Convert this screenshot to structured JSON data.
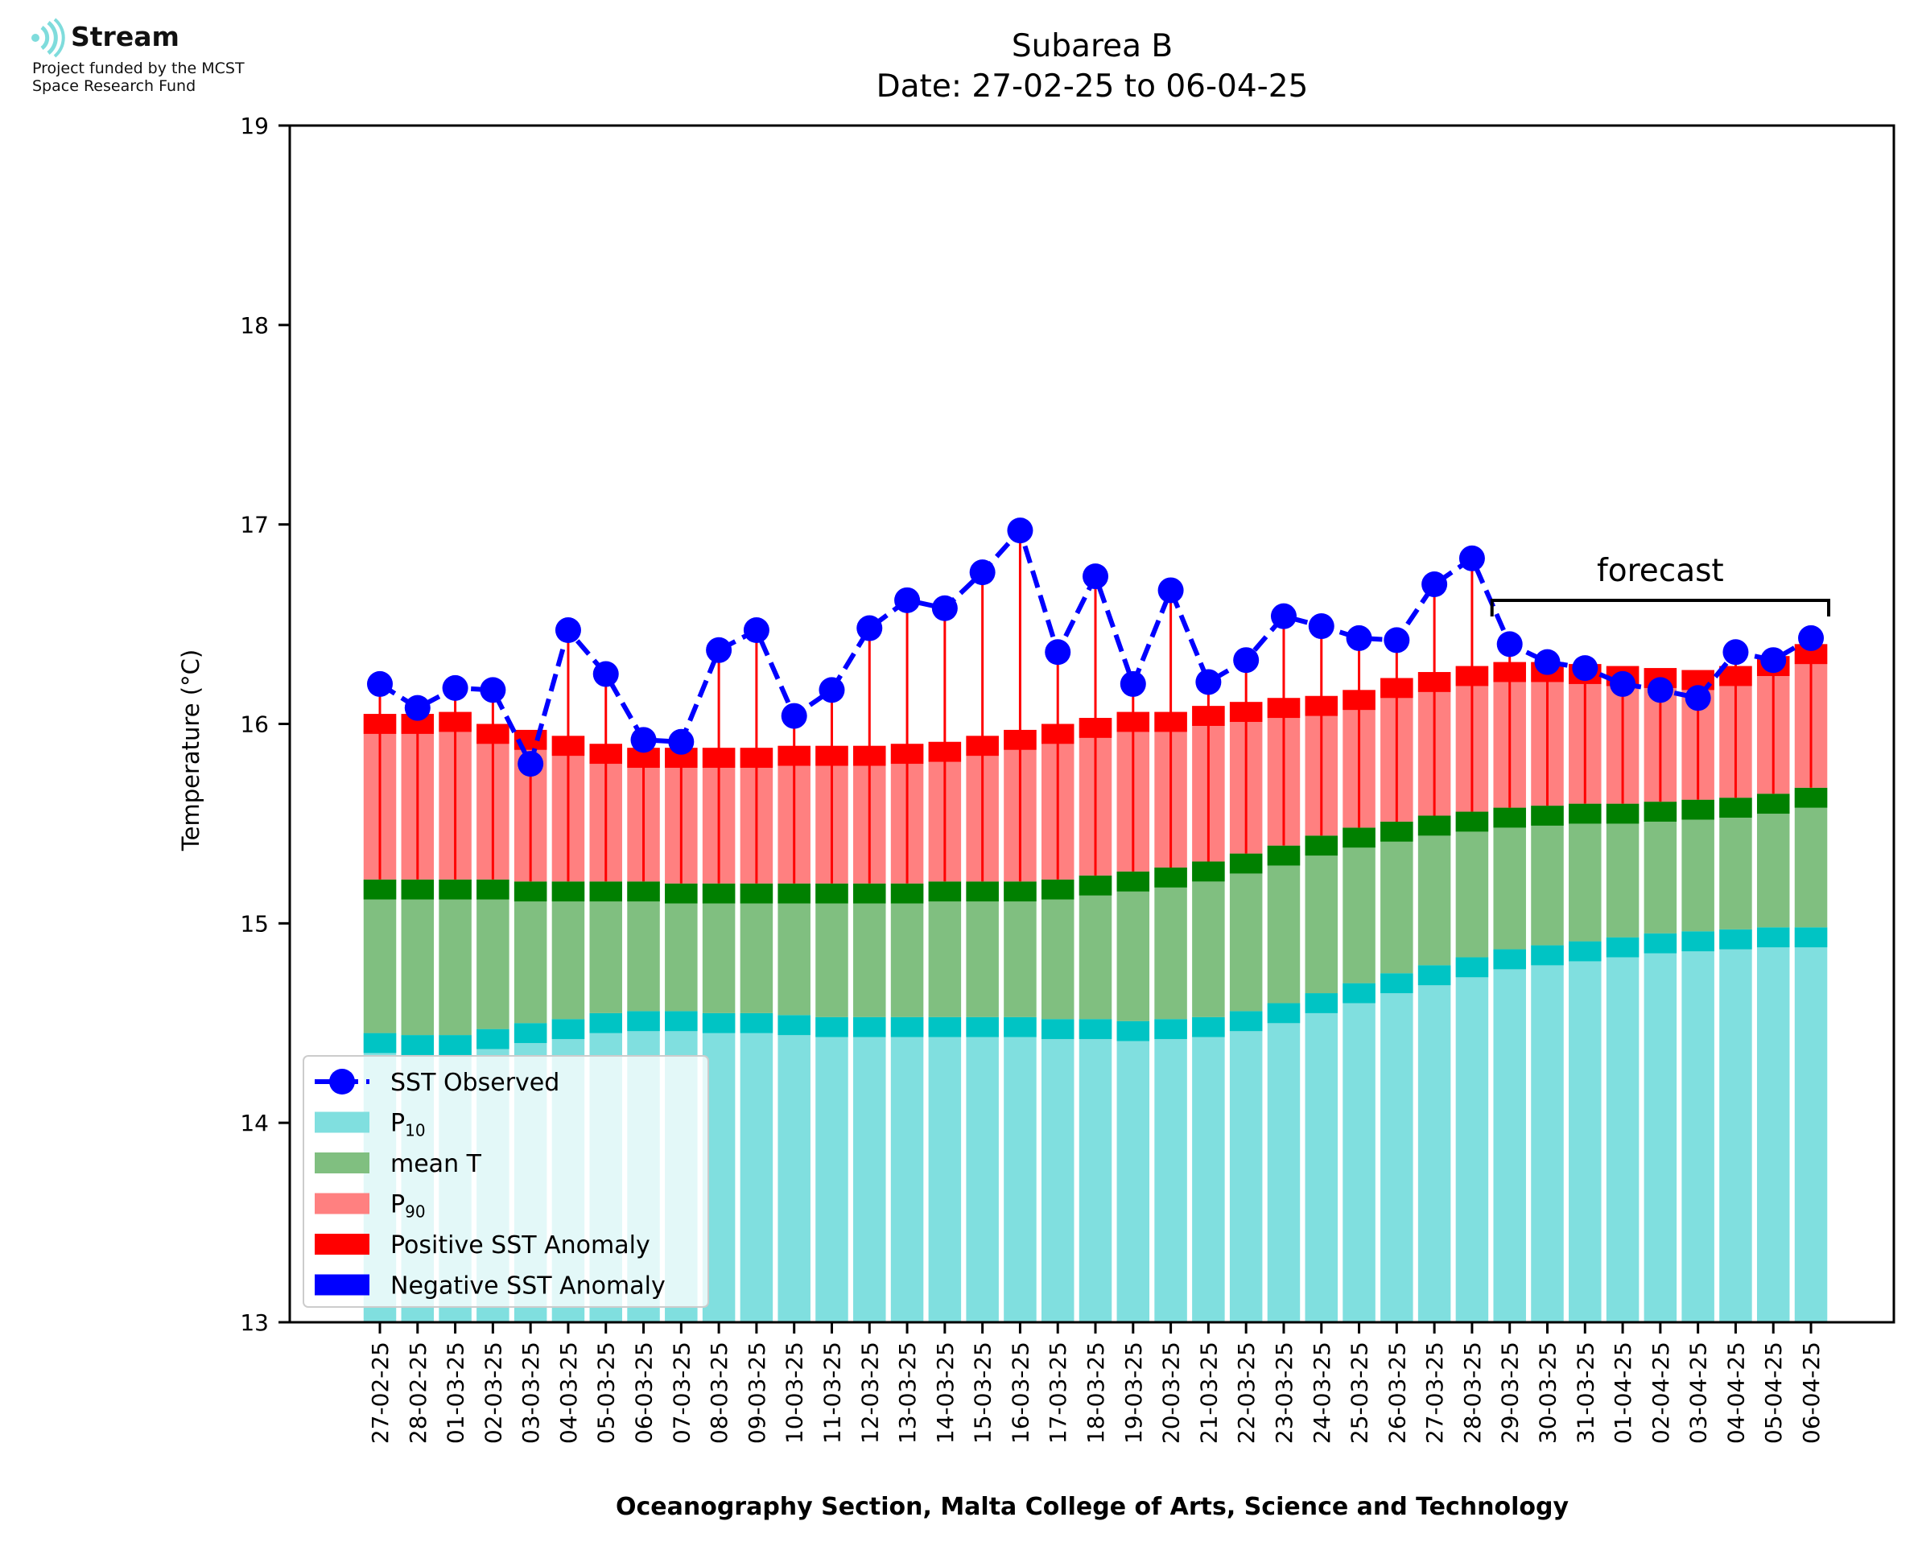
{
  "logo": {
    "brand": "Stream",
    "funding": "Project funded by the MCST\nSpace Research Fund",
    "icon": "stream-waves-icon",
    "color": "#7fdcdc"
  },
  "chart_data": {
    "type": "bar",
    "title": "Subarea B",
    "subtitle": "Date: 27-02-25 to 06-04-25",
    "xlabel": "Oceanography Section, Malta College of Arts, Science and Technology",
    "ylabel": "Temperature (°C)",
    "ylim": [
      13,
      19
    ],
    "yticks": [
      13,
      14,
      15,
      16,
      17,
      18,
      19
    ],
    "grid": false,
    "legend_position": "lower-left",
    "annotation": {
      "text": "forecast",
      "from": "29-03-25",
      "to": "06-04-25"
    },
    "colors": {
      "p10": "#80dfdf",
      "p10_edge": "#00c4c4",
      "mean": "#80bf80",
      "mean_edge": "#008000",
      "p90": "#ff8080",
      "p90_edge": "#ff0000",
      "positive_anomaly": "#ff0000",
      "negative_anomaly": "#0000ff",
      "sst": "#0000ff"
    },
    "legend": [
      {
        "key": "sst",
        "label": "SST Observed"
      },
      {
        "key": "p10",
        "label": "P",
        "sub": "10"
      },
      {
        "key": "mean",
        "label": "mean T"
      },
      {
        "key": "p90",
        "label": "P",
        "sub": "90"
      },
      {
        "key": "positive_anomaly",
        "label": "Positive SST Anomaly"
      },
      {
        "key": "negative_anomaly",
        "label": "Negative SST Anomaly"
      }
    ],
    "categories": [
      "27-02-25",
      "28-02-25",
      "01-03-25",
      "02-03-25",
      "03-03-25",
      "04-03-25",
      "05-03-25",
      "06-03-25",
      "07-03-25",
      "08-03-25",
      "09-03-25",
      "10-03-25",
      "11-03-25",
      "12-03-25",
      "13-03-25",
      "14-03-25",
      "15-03-25",
      "16-03-25",
      "17-03-25",
      "18-03-25",
      "19-03-25",
      "20-03-25",
      "21-03-25",
      "22-03-25",
      "23-03-25",
      "24-03-25",
      "25-03-25",
      "26-03-25",
      "27-03-25",
      "28-03-25",
      "29-03-25",
      "30-03-25",
      "31-03-25",
      "01-04-25",
      "02-04-25",
      "03-04-25",
      "04-04-25",
      "05-04-25",
      "06-04-25"
    ],
    "series": [
      {
        "name": "P10",
        "values": [
          14.45,
          14.44,
          14.44,
          14.47,
          14.5,
          14.52,
          14.55,
          14.56,
          14.56,
          14.55,
          14.55,
          14.54,
          14.53,
          14.53,
          14.53,
          14.53,
          14.53,
          14.53,
          14.52,
          14.52,
          14.51,
          14.52,
          14.53,
          14.56,
          14.6,
          14.65,
          14.7,
          14.75,
          14.79,
          14.83,
          14.87,
          14.89,
          14.91,
          14.93,
          14.95,
          14.96,
          14.97,
          14.98,
          14.98
        ]
      },
      {
        "name": "mean T",
        "values": [
          15.22,
          15.22,
          15.22,
          15.22,
          15.21,
          15.21,
          15.21,
          15.21,
          15.2,
          15.2,
          15.2,
          15.2,
          15.2,
          15.2,
          15.2,
          15.21,
          15.21,
          15.21,
          15.22,
          15.24,
          15.26,
          15.28,
          15.31,
          15.35,
          15.39,
          15.44,
          15.48,
          15.51,
          15.54,
          15.56,
          15.58,
          15.59,
          15.6,
          15.6,
          15.61,
          15.62,
          15.63,
          15.65,
          15.68
        ]
      },
      {
        "name": "P90",
        "values": [
          16.05,
          16.05,
          16.06,
          16.0,
          15.97,
          15.94,
          15.9,
          15.88,
          15.88,
          15.88,
          15.88,
          15.89,
          15.89,
          15.89,
          15.9,
          15.91,
          15.94,
          15.97,
          16.0,
          16.03,
          16.06,
          16.06,
          16.09,
          16.11,
          16.13,
          16.14,
          16.17,
          16.23,
          16.26,
          16.29,
          16.31,
          16.31,
          16.3,
          16.29,
          16.28,
          16.27,
          16.29,
          16.34,
          16.4
        ]
      },
      {
        "name": "SST Observed",
        "values": [
          16.2,
          16.08,
          16.18,
          16.17,
          15.8,
          16.47,
          16.25,
          15.92,
          15.91,
          16.37,
          16.47,
          16.04,
          16.17,
          16.48,
          16.62,
          16.58,
          16.76,
          16.97,
          16.36,
          16.74,
          16.2,
          16.67,
          16.21,
          16.32,
          16.54,
          16.49,
          16.43,
          16.42,
          16.7,
          16.83,
          16.4,
          16.31,
          16.28,
          16.2,
          16.17,
          16.13,
          16.36,
          16.32,
          16.43
        ]
      }
    ]
  }
}
